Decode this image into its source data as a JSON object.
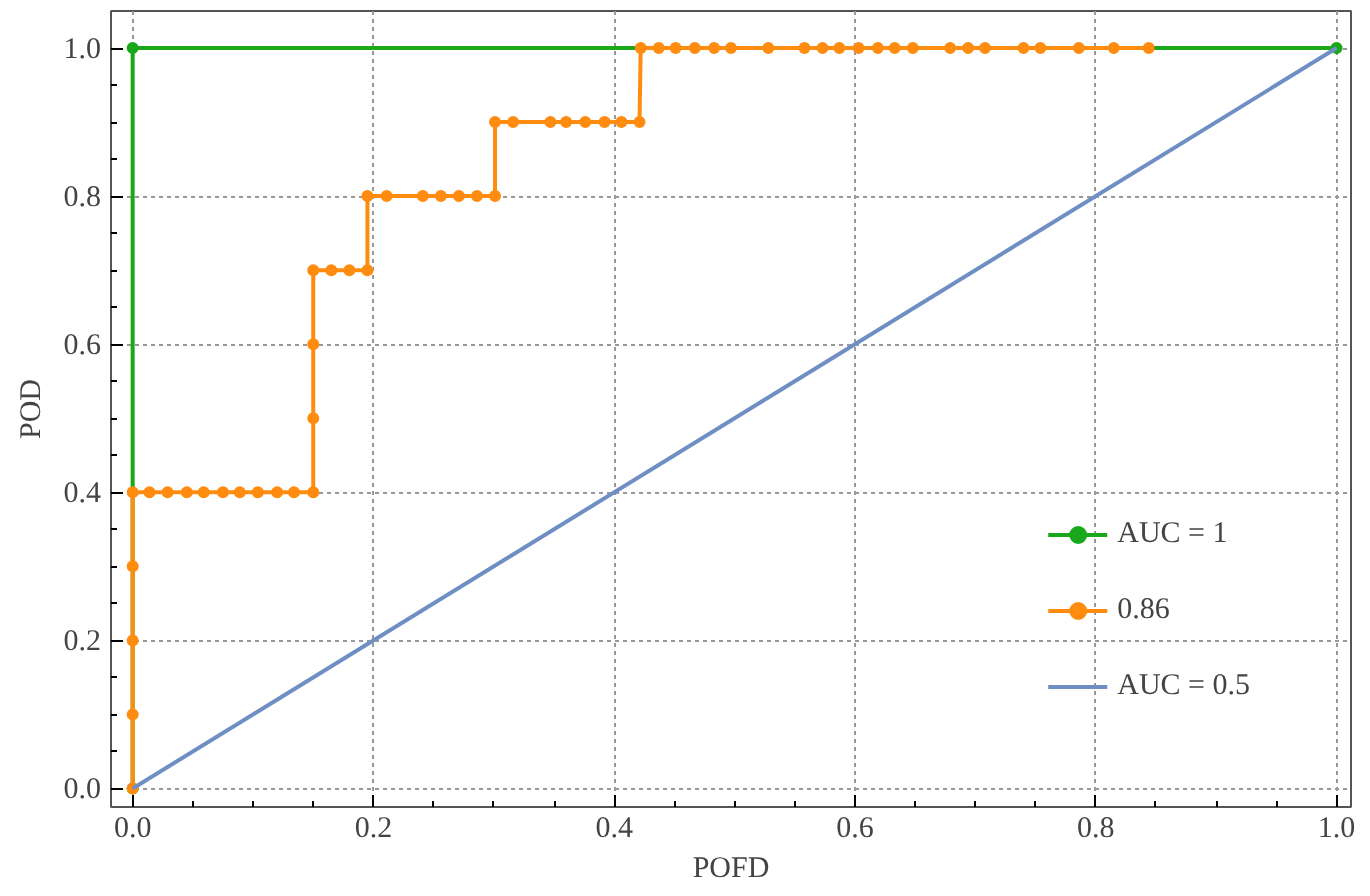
{
  "chart_data": {
    "type": "line",
    "xlabel": "POFD",
    "ylabel": "POD",
    "xlim": [
      -0.018,
      1.012
    ],
    "ylim": [
      -0.025,
      1.05
    ],
    "xticks": [
      {
        "value": 0,
        "label": "0.0"
      },
      {
        "value": 0.2,
        "label": "0.2"
      },
      {
        "value": 0.4,
        "label": "0.4"
      },
      {
        "value": 0.6,
        "label": "0.6"
      },
      {
        "value": 0.8,
        "label": "0.8"
      },
      {
        "value": 1,
        "label": "1.0"
      }
    ],
    "yticks": [
      {
        "value": 0,
        "label": "0.0"
      },
      {
        "value": 0.2,
        "label": "0.2"
      },
      {
        "value": 0.4,
        "label": "0.4"
      },
      {
        "value": 0.6,
        "label": "0.6"
      },
      {
        "value": 0.8,
        "label": "0.8"
      },
      {
        "value": 1,
        "label": "1.0"
      }
    ],
    "grid": true,
    "legend": "bottom right",
    "line_style": "solid",
    "series": [
      {
        "name": "AUC = 1",
        "color": "#1aa81a",
        "marker": "circle",
        "x": [
          0,
          0,
          1
        ],
        "values": [
          0,
          1,
          1
        ]
      },
      {
        "name": "0.86",
        "color": "#ff8c0f",
        "marker": "circle",
        "x": [
          0,
          0,
          0,
          0,
          0,
          0.014,
          0.029,
          0.045,
          0.059,
          0.075,
          0.089,
          0.104,
          0.12,
          0.134,
          0.15,
          0.15,
          0.15,
          0.15,
          0.165,
          0.18,
          0.195,
          0.195,
          0.211,
          0.241,
          0.256,
          0.271,
          0.286,
          0.301,
          0.301,
          0.316,
          0.347,
          0.36,
          0.376,
          0.392,
          0.406,
          0.421,
          0.422,
          0.437,
          0.451,
          0.467,
          0.483,
          0.497,
          0.528,
          0.558,
          0.573,
          0.587,
          0.603,
          0.619,
          0.633,
          0.648,
          0.679,
          0.694,
          0.708,
          0.74,
          0.754,
          0.786,
          0.815,
          0.844
        ],
        "values": [
          0,
          0.1,
          0.2,
          0.3,
          0.4,
          0.4,
          0.4,
          0.4,
          0.4,
          0.4,
          0.4,
          0.4,
          0.4,
          0.4,
          0.4,
          0.5,
          0.6,
          0.7,
          0.7,
          0.7,
          0.7,
          0.8,
          0.8,
          0.8,
          0.8,
          0.8,
          0.8,
          0.8,
          0.9,
          0.9,
          0.9,
          0.9,
          0.9,
          0.9,
          0.9,
          0.9,
          1,
          1,
          1,
          1,
          1,
          1,
          1,
          1,
          1,
          1,
          1,
          1,
          1,
          1,
          1,
          1,
          1,
          1,
          1,
          1,
          1,
          1
        ]
      },
      {
        "name": "AUC = 0.5",
        "color": "#6f8fc4",
        "marker": "none",
        "x": [
          0,
          1
        ],
        "values": [
          0,
          1
        ]
      }
    ]
  }
}
